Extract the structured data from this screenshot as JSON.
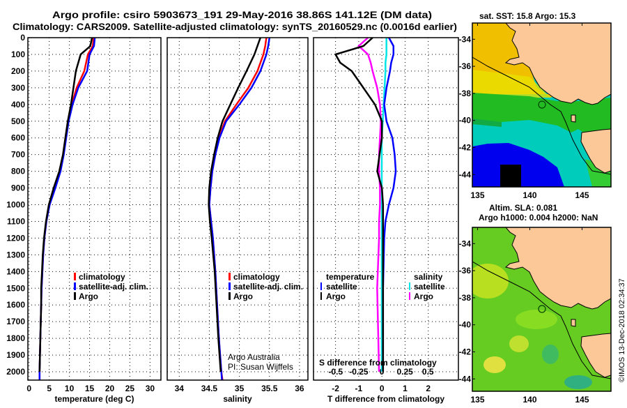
{
  "titles": {
    "line1": "Argo profile: csiro 5903673_191 29-May-2016 38.86S 141.12E (DM data)",
    "line2": "Climatology: CARS2009. Satellite-adjusted climatology: synTS_20160529.nc (0.0016d earlier)"
  },
  "colors": {
    "climatology": "#ff0000",
    "satellite": "#0000ff",
    "argo": "#000000",
    "sat_salinity": "#00e5e5",
    "argo_salinity": "#ff00ff",
    "land": "#fcc898"
  },
  "depth_ticks": [
    "0",
    "100",
    "200",
    "300",
    "400",
    "500",
    "600",
    "700",
    "800",
    "900",
    "1000",
    "1100",
    "1200",
    "1300",
    "1400",
    "1500",
    "1600",
    "1700",
    "1800",
    "1900",
    "2000"
  ],
  "chart_data": [
    {
      "type": "line",
      "xlabel": "temperature (deg C)",
      "ylabel": "depth",
      "xlim": [
        -0.3,
        32.7
      ],
      "ylim": [
        0,
        2050
      ],
      "xticks": [
        "0",
        "5",
        "10",
        "15",
        "20",
        "25",
        "30"
      ],
      "xtick_values": [
        0,
        5,
        10,
        15,
        20,
        25,
        30
      ],
      "legend": [
        "climatology",
        "satellite-adj. clim.",
        "Argo"
      ],
      "depth": [
        0,
        50,
        100,
        200,
        300,
        400,
        500,
        600,
        700,
        800,
        900,
        1000,
        1100,
        1200,
        1300,
        1400,
        1500,
        1600,
        1800,
        2000,
        2050
      ],
      "series": [
        {
          "name": "climatology",
          "values": [
            16.0,
            15.8,
            14.6,
            13.7,
            11.8,
            10.6,
            9.7,
            9.1,
            8.5,
            7.6,
            6.3,
            5.0,
            4.3,
            3.8,
            3.5,
            3.3,
            3.1,
            3.0,
            2.8,
            2.6,
            2.6
          ]
        },
        {
          "name": "satellite-adj. clim.",
          "values": [
            16.3,
            16.1,
            15.0,
            14.4,
            12.2,
            10.8,
            9.8,
            9.2,
            8.6,
            7.8,
            6.5,
            5.1,
            4.3,
            3.8,
            3.5,
            3.3,
            3.1,
            3.0,
            2.8,
            2.6,
            2.6
          ]
        },
        {
          "name": "Argo",
          "values": [
            15.6,
            15.2,
            12.8,
            11.6,
            11.0,
            10.4,
            9.6,
            9.0,
            8.4,
            7.5,
            6.1,
            4.9,
            4.2,
            3.7,
            3.4,
            3.2,
            3.0,
            3.0,
            2.8,
            2.6,
            null
          ]
        }
      ]
    },
    {
      "type": "line",
      "xlabel": "salinity",
      "ylabel": "depth",
      "xlim": [
        33.8,
        36.14
      ],
      "ylim": [
        0,
        2050
      ],
      "xticks": [
        "34",
        "34.5",
        "35",
        "35.5",
        "36"
      ],
      "xtick_values": [
        34,
        34.5,
        35,
        35.5,
        36
      ],
      "legend": [
        "climatology",
        "satellite-adj. clim.",
        "Argo"
      ],
      "annotation": [
        "Argo Australia",
        "PI: Susan Wijffels"
      ],
      "depth": [
        0,
        50,
        100,
        200,
        300,
        400,
        500,
        600,
        700,
        800,
        900,
        1000,
        1100,
        1200,
        1400,
        1600,
        1800,
        2000,
        2050
      ],
      "series": [
        {
          "name": "climatology",
          "values": [
            35.45,
            35.43,
            35.4,
            35.3,
            35.15,
            34.95,
            34.76,
            34.66,
            34.6,
            34.55,
            34.52,
            34.5,
            34.53,
            34.56,
            34.6,
            34.63,
            34.66,
            34.7,
            34.72
          ]
        },
        {
          "name": "satellite-adj. clim.",
          "values": [
            35.5,
            35.48,
            35.45,
            35.35,
            35.2,
            35.0,
            34.78,
            34.67,
            34.6,
            34.55,
            34.52,
            34.5,
            34.53,
            34.56,
            34.6,
            34.63,
            34.66,
            34.7,
            34.71
          ]
        },
        {
          "name": "Argo",
          "values": [
            35.35,
            35.3,
            35.25,
            35.12,
            34.98,
            34.85,
            34.72,
            34.64,
            34.58,
            34.53,
            34.5,
            34.49,
            34.51,
            34.54,
            34.59,
            34.62,
            34.65,
            34.69,
            null
          ]
        }
      ]
    },
    {
      "type": "line",
      "xlabel": "T difference from climatology",
      "xlabel2": "S difference from climatology",
      "xlim": [
        -2.95,
        3.3
      ],
      "x2lim": [
        -0.74,
        0.83
      ],
      "ylim": [
        0,
        2050
      ],
      "xticks": [
        "-2",
        "-1",
        "0",
        "1",
        "2"
      ],
      "xtick_values": [
        -2,
        -1,
        0,
        1,
        2
      ],
      "x2ticks": [
        "-0.5",
        "-0.25",
        "0",
        "0.25",
        "0.5"
      ],
      "x2tick_values": [
        -0.5,
        -0.25,
        0,
        0.25,
        0.5
      ],
      "legend_temperature": {
        "title": "temperature",
        "items": [
          "satellite",
          "Argo"
        ]
      },
      "legend_salinity": {
        "title": "salinity",
        "items": [
          "satellite",
          "Argo"
        ]
      },
      "depth": [
        0,
        50,
        100,
        150,
        200,
        300,
        400,
        500,
        600,
        700,
        800,
        900,
        1000,
        1100,
        1200,
        1500,
        2000
      ],
      "series": [
        {
          "name": "temperature satellite",
          "axis": "T",
          "values": [
            0.3,
            0.5,
            0.5,
            0.4,
            0.35,
            0.2,
            0.1,
            0.2,
            0.45,
            0.55,
            0.6,
            0.5,
            0.3,
            0.15,
            0.1,
            0.05,
            0.05
          ]
        },
        {
          "name": "temperature Argo",
          "axis": "T",
          "values": [
            -0.4,
            -0.8,
            -2.0,
            -1.8,
            -1.3,
            -0.8,
            -0.3,
            0.0,
            0.0,
            -0.1,
            -0.2,
            0.0,
            0.05,
            0.05,
            0.05,
            0.05,
            0.05
          ]
        },
        {
          "name": "salinity satellite",
          "axis": "S",
          "values": [
            0.05,
            0.05,
            0.05,
            0.04,
            0.04,
            0.03,
            0.02,
            0.01,
            0.0,
            0.0,
            0.0,
            0.0,
            0.0,
            0.0,
            0.0,
            0.0,
            0.0
          ]
        },
        {
          "name": "salinity Argo",
          "axis": "S",
          "values": [
            -0.15,
            -0.25,
            -0.15,
            -0.12,
            -0.1,
            -0.05,
            -0.02,
            -0.01,
            -0.02,
            -0.03,
            -0.03,
            -0.02,
            -0.02,
            -0.03,
            -0.03,
            -0.05,
            -0.03
          ]
        }
      ]
    }
  ],
  "maps": {
    "sst_title": "sat. SST: 15.8 Argo: 15.3",
    "sla_title1": "Altim. SLA: 0.081",
    "sla_title2": "Argo h1000: 0.004 h2000: NaN",
    "lon_ticks": [
      "135",
      "140",
      "145"
    ],
    "lon_values": [
      135,
      140,
      145
    ],
    "lat_ticks": [
      "-34",
      "-36",
      "-38",
      "-40",
      "-42",
      "-44"
    ],
    "lat_values": [
      -34,
      -36,
      -38,
      -40,
      -42,
      -44
    ],
    "float_position": {
      "lon": 141.12,
      "lat": -38.86
    }
  },
  "credit": "©IMOS 13-Dec-2018 02:34:37"
}
